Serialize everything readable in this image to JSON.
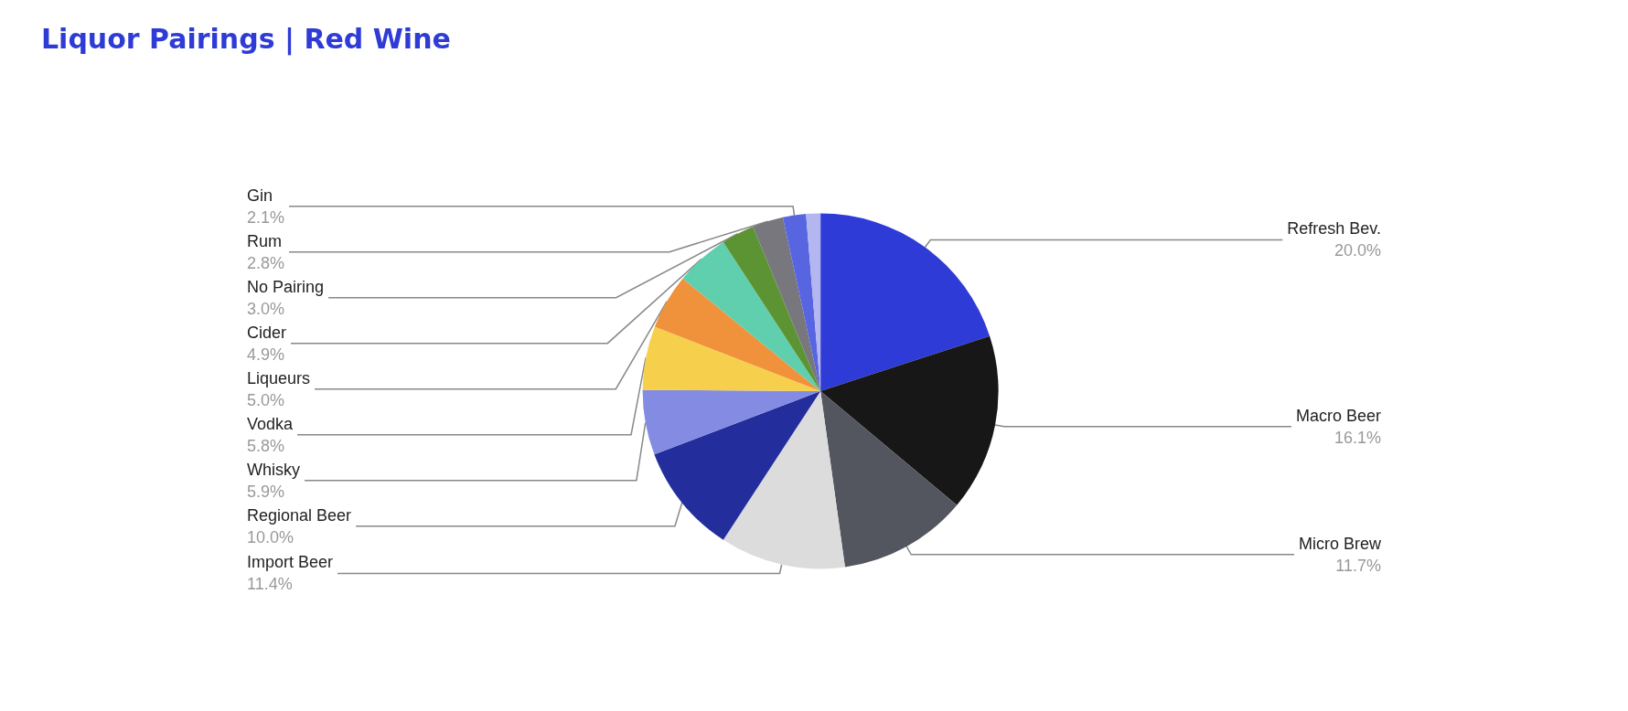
{
  "chart_data": {
    "type": "pie",
    "title": "Liquor Pairings | Red Wine",
    "categories": [
      "Refresh Bev.",
      "Macro Beer",
      "Micro Brew",
      "Import Beer",
      "Regional Beer",
      "Whisky",
      "Vodka",
      "Liqueurs",
      "Cider",
      "No Pairing",
      "Rum",
      "Gin",
      null
    ],
    "values": [
      20.0,
      16.1,
      11.7,
      11.4,
      10.0,
      5.9,
      5.8,
      5.0,
      4.9,
      3.0,
      2.8,
      2.1,
      1.3
    ],
    "value_labels": [
      "20.0%",
      "16.1%",
      "11.7%",
      "11.4%",
      "10.0%",
      "5.9%",
      "5.8%",
      "5.0%",
      "4.9%",
      "3.0%",
      "2.8%",
      "2.1%",
      null
    ],
    "colors": [
      "#2e3bd6",
      "#171717",
      "#53565e",
      "#dcdcdc",
      "#232d9c",
      "#838be3",
      "#f6d04d",
      "#f0913c",
      "#5fcfad",
      "#5c9433",
      "#77777d",
      "#5865e0",
      "#b3b6ef"
    ],
    "legend": false
  }
}
